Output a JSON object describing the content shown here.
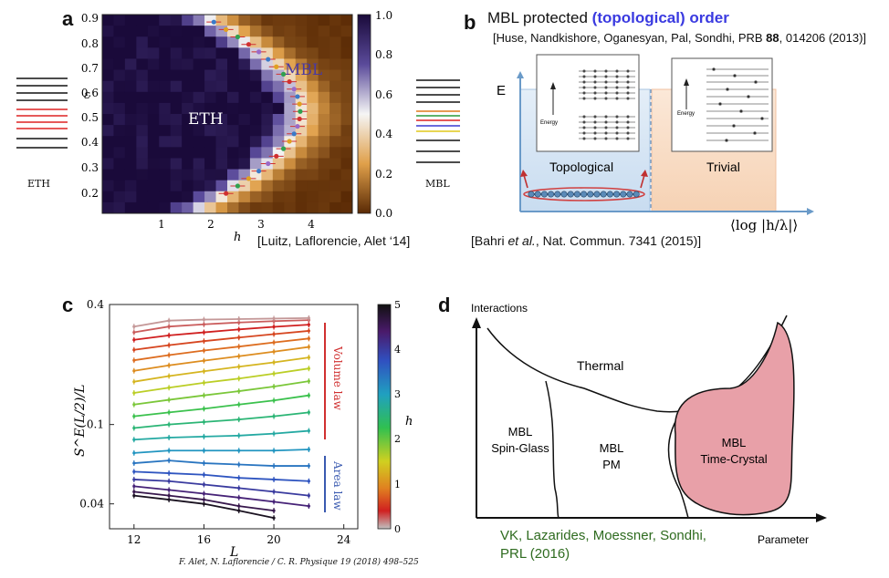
{
  "panels": {
    "a": {
      "letter": "a",
      "x_symbol": "h",
      "y_symbol": "ε",
      "x_ticks": [
        "1",
        "2",
        "3",
        "4"
      ],
      "y_ticks": [
        "0.9",
        "0.8",
        "0.7",
        "0.6",
        "0.5",
        "0.4",
        "0.3",
        "0.2"
      ],
      "colorbar_ticks": [
        "1.0",
        "0.8",
        "0.6",
        "0.4",
        "0.2",
        "0.0"
      ],
      "region_labels": {
        "eth": "ETH",
        "mbl": "MBL"
      },
      "side_labels": {
        "left": "ETH",
        "right": "MBL"
      },
      "citation": "[Luitz, Laflorencie, Alet ‘14]"
    },
    "b": {
      "letter": "b",
      "title_plain": "MBL protected ",
      "title_highlight": "(topological) order",
      "citation_top_pre": "[Huse, Nandkishore, Oganesyan, Pal, Sondhi, PRB ",
      "citation_top_vol": "88",
      "citation_top_post": ", 014206 (2013)]",
      "axis_e": "E",
      "axis_x": "⟨log |h/λ|⟩",
      "topological_label": "Topological",
      "trivial_label": "Trivial",
      "energy_label": "Energy",
      "citation_bottom_pre": "[Bahri ",
      "citation_bottom_ital": "et al.",
      "citation_bottom_post": ", Nat. Commun. 7341 (2015)]",
      "highlight_color": "#3a3ae0"
    },
    "c": {
      "letter": "c",
      "ylabel": "S^E(L/2)/L",
      "xlabel": "L",
      "volume_law": "Volume law",
      "area_law": "Area law",
      "colorbar_label": "h",
      "colorbar_ticks": [
        "5",
        "4",
        "3",
        "2",
        "1",
        "0"
      ],
      "footer": "F. Alet, N. Laflorencie / C. R. Physique 19 (2018) 498–525"
    },
    "d": {
      "letter": "d",
      "y_axis": "Interactions",
      "x_axis": "Parameter",
      "thermal": "Thermal",
      "spin_glass_1": "MBL",
      "spin_glass_2": "Spin-Glass",
      "pm_1": "MBL",
      "pm_2": "PM",
      "tc_1": "MBL",
      "tc_2": "Time-Crystal",
      "citation_1": "VK, Lazarides, Moessner, Sondhi,",
      "citation_2": "PRL (2016)",
      "citation_color": "#2e6b1f",
      "crystal_fill": "#e8a0a8"
    }
  },
  "chart_data": {
    "type": "line",
    "xlabel": "L",
    "ylabel": "S^E(L/2)/L",
    "x": [
      12,
      14,
      16,
      18,
      20,
      22
    ],
    "x_ticks": [
      "12",
      "16",
      "20",
      "24"
    ],
    "y_ticks": [
      "0.04",
      "0.1",
      "0.4"
    ],
    "yscale": "log",
    "ylim": [
      0.03,
      0.4
    ],
    "xlim": [
      10.6,
      24.8
    ],
    "colorbar": {
      "label": "h",
      "range": [
        0,
        5
      ]
    },
    "series": [
      {
        "h": 4.9,
        "values": [
          0.044,
          0.042,
          0.04,
          0.037,
          0.034,
          null
        ]
      },
      {
        "h": 4.6,
        "values": [
          0.046,
          0.044,
          0.042,
          0.039,
          0.037,
          null
        ]
      },
      {
        "h": 4.3,
        "values": [
          0.049,
          0.047,
          0.045,
          0.043,
          0.041,
          0.039
        ]
      },
      {
        "h": 4.0,
        "values": [
          0.053,
          0.052,
          0.05,
          0.048,
          0.046,
          0.044
        ]
      },
      {
        "h": 3.7,
        "values": [
          0.058,
          0.057,
          0.056,
          0.054,
          0.053,
          0.052
        ]
      },
      {
        "h": 3.4,
        "values": [
          0.064,
          0.066,
          0.064,
          0.063,
          0.062,
          0.062
        ]
      },
      {
        "h": 3.1,
        "values": [
          0.072,
          0.074,
          0.074,
          0.074,
          0.074,
          0.075
        ]
      },
      {
        "h": 2.8,
        "values": [
          0.084,
          0.086,
          0.087,
          0.088,
          0.09,
          0.093
        ]
      },
      {
        "h": 2.5,
        "values": [
          0.096,
          0.1,
          0.103,
          0.106,
          0.11,
          0.115
        ]
      },
      {
        "h": 2.2,
        "values": [
          0.11,
          0.115,
          0.12,
          0.126,
          0.132,
          0.14
        ]
      },
      {
        "h": 1.9,
        "values": [
          0.126,
          0.133,
          0.14,
          0.147,
          0.155,
          0.165
        ]
      },
      {
        "h": 1.6,
        "values": [
          0.144,
          0.153,
          0.162,
          0.17,
          0.18,
          0.191
        ]
      },
      {
        "h": 1.3,
        "values": [
          0.164,
          0.175,
          0.185,
          0.195,
          0.205,
          0.217
        ]
      },
      {
        "h": 1.0,
        "values": [
          0.186,
          0.198,
          0.209,
          0.22,
          0.232,
          0.245
        ]
      },
      {
        "h": 0.8,
        "values": [
          0.21,
          0.223,
          0.235,
          0.246,
          0.258,
          0.27
        ]
      },
      {
        "h": 0.6,
        "values": [
          0.237,
          0.25,
          0.262,
          0.273,
          0.284,
          0.295
        ]
      },
      {
        "h": 0.4,
        "values": [
          0.266,
          0.28,
          0.29,
          0.3,
          0.309,
          0.317
        ]
      },
      {
        "h": 0.25,
        "values": [
          0.29,
          0.31,
          0.318,
          0.325,
          0.33,
          0.334
        ]
      },
      {
        "h": 0.1,
        "values": [
          0.31,
          0.332,
          0.336,
          0.338,
          0.34,
          0.342
        ]
      }
    ]
  }
}
